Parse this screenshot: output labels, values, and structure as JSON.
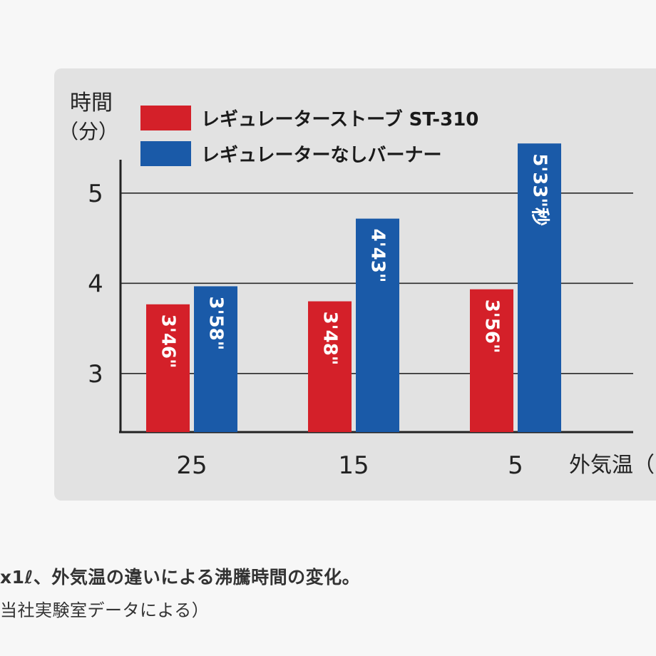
{
  "chart_data": {
    "type": "bar",
    "ylabel": [
      "時間",
      "（分）"
    ],
    "xlabel": "外気温（",
    "categories": [
      "25",
      "15",
      "5"
    ],
    "y_ticks": [
      "3",
      "4",
      "5"
    ],
    "ylim": [
      2.35,
      5.6
    ],
    "grid": true,
    "legend_position": "top-left",
    "series": [
      {
        "name": "レギュレーターストーブ ST-310",
        "color": "#d42029",
        "values": [
          3.7667,
          3.8,
          3.9333
        ],
        "labels": [
          "3'46\"",
          "3'48\"",
          "3'56\""
        ]
      },
      {
        "name": "レギュレーターなしバーナー",
        "color": "#1a5aa8",
        "values": [
          3.9667,
          4.7167,
          5.55
        ],
        "labels": [
          "3'58\"",
          "4'43\"",
          "5'33\"秒"
        ]
      }
    ]
  },
  "caption": {
    "line1": "x1ℓ、外気温の違いによる沸騰時間の変化。",
    "line2": "当社実験室データによる）"
  }
}
